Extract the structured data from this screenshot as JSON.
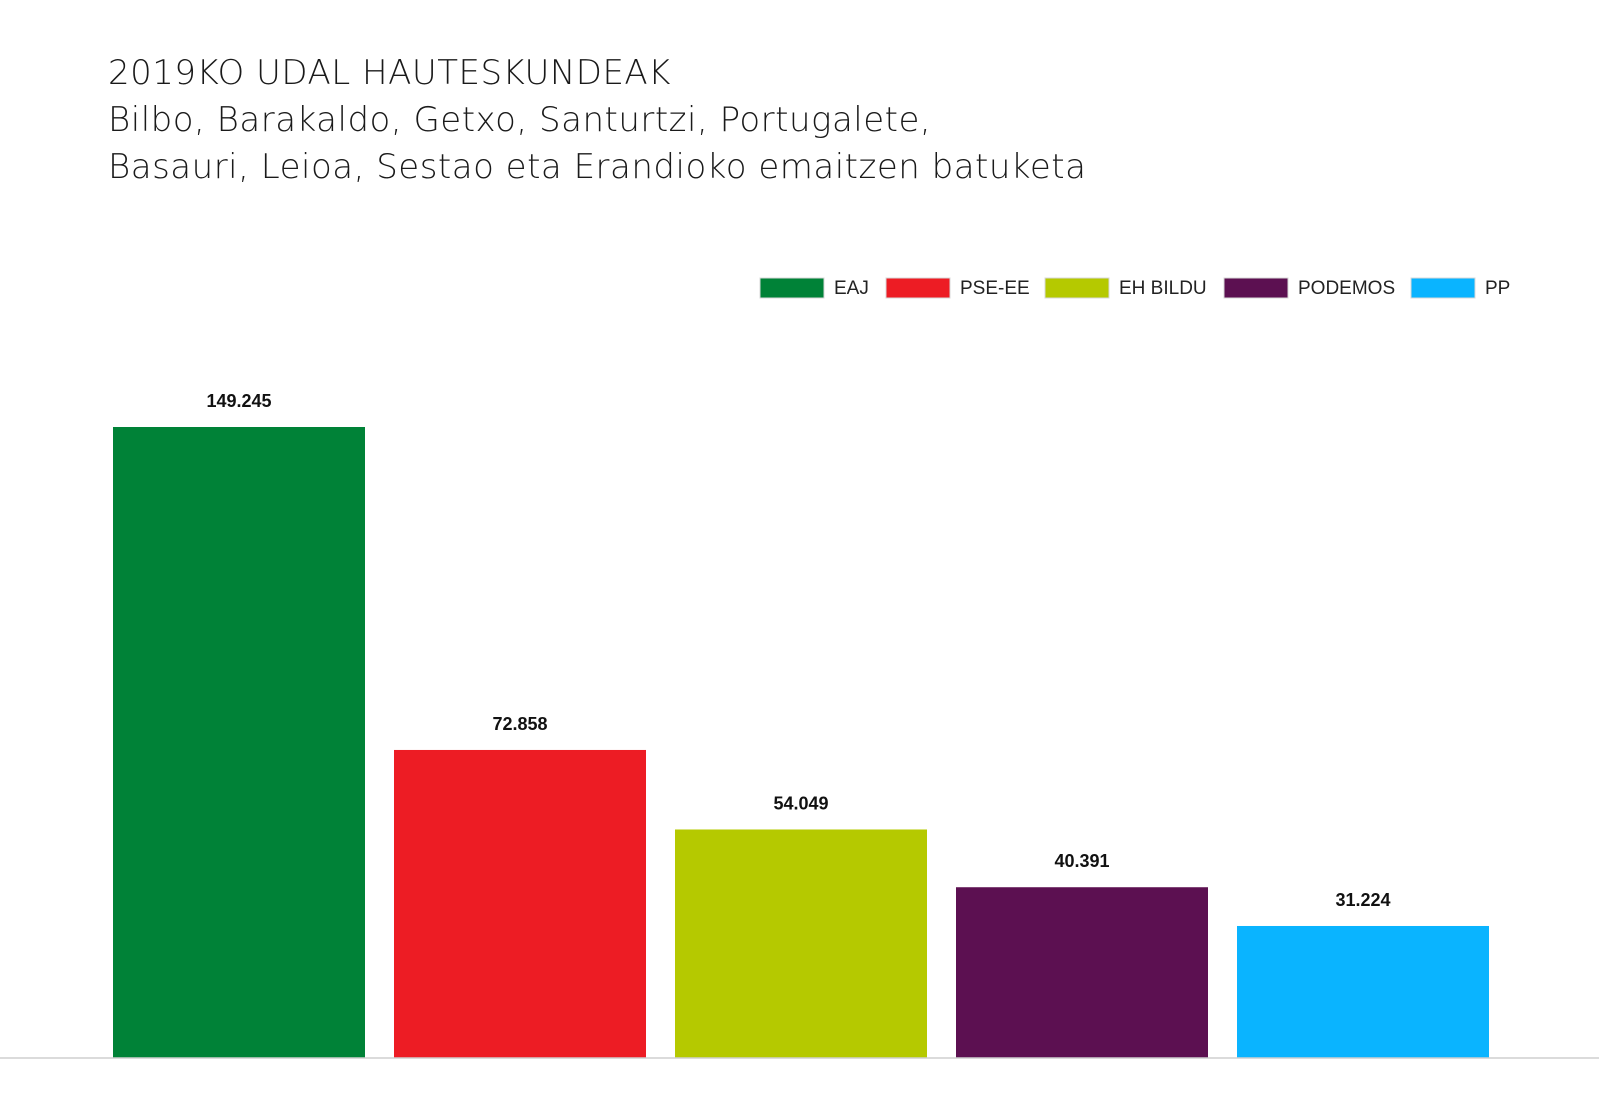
{
  "header": {
    "title": "2019KO UDAL HAUTESKUNDEAK",
    "subtitle_line1": "Bilbo, Barakaldo, Getxo, Santurtzi, Portugalete,",
    "subtitle_line2": "Basauri, Leioa, Sestao eta Erandioko emaitzen batuketa"
  },
  "chart_data": {
    "type": "bar",
    "categories": [
      "EAJ",
      "PSE-EE",
      "EH BILDU",
      "PODEMOS",
      "PP"
    ],
    "values": [
      149245,
      72858,
      54049,
      40391,
      31224
    ],
    "value_labels": [
      "149.245",
      "72.858",
      "54.049",
      "40.391",
      "31.224"
    ],
    "colors": [
      "#008237",
      "#ed1c24",
      "#b5c900",
      "#5c1051",
      "#0ab4ff"
    ],
    "title": "2019KO UDAL HAUTESKUNDEAK",
    "subtitle": "Bilbo, Barakaldo, Getxo, Santurtzi, Portugalete, Basauri, Leioa, Sestao eta Erandioko emaitzen batuketa",
    "xlabel": "",
    "ylabel": "",
    "ylim": [
      0,
      149245
    ],
    "grid": false,
    "legend": {
      "position": "top-right",
      "entries": [
        "EAJ",
        "PSE-EE",
        "EH BILDU",
        "PODEMOS",
        "PP"
      ]
    }
  }
}
